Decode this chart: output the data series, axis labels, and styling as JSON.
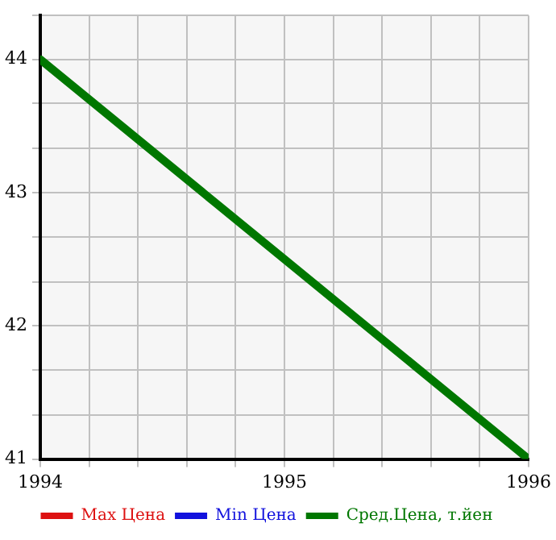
{
  "chart_data": {
    "type": "line",
    "x": [
      1994,
      1995,
      1996
    ],
    "series": [
      {
        "name": "Max Цена",
        "color": "#dd1111",
        "values": [
          null,
          null,
          null
        ]
      },
      {
        "name": "Min Цена",
        "color": "#1111dd",
        "values": [
          null,
          null,
          null
        ]
      },
      {
        "name": "Сред.Цена, т.йен",
        "color": "#007700",
        "values": [
          44,
          42.5,
          41
        ]
      }
    ],
    "xlim": [
      1994,
      1996
    ],
    "xticks": [
      1994,
      {
        "value": 1994.2,
        "label": null
      },
      {
        "value": 1994.4,
        "label": null
      },
      {
        "value": 1994.6,
        "label": null
      },
      {
        "value": 1994.8,
        "label": null
      },
      1995,
      {
        "value": 1995.2,
        "label": null
      },
      {
        "value": 1995.4,
        "label": null
      },
      {
        "value": 1995.6,
        "label": null
      },
      {
        "value": 1995.8,
        "label": null
      },
      1996
    ],
    "ylim": [
      41,
      44.33
    ],
    "yticks": [
      41,
      {
        "value": 41.33,
        "label": null
      },
      {
        "value": 41.67,
        "label": null
      },
      42,
      {
        "value": 42.33,
        "label": null
      },
      {
        "value": 42.67,
        "label": null
      },
      43,
      {
        "value": 43.33,
        "label": null
      },
      {
        "value": 43.67,
        "label": null
      },
      44,
      {
        "value": 44.33,
        "label": null
      }
    ],
    "grid": true,
    "legend": "bottom",
    "marker": "none",
    "line_style": "solid"
  }
}
